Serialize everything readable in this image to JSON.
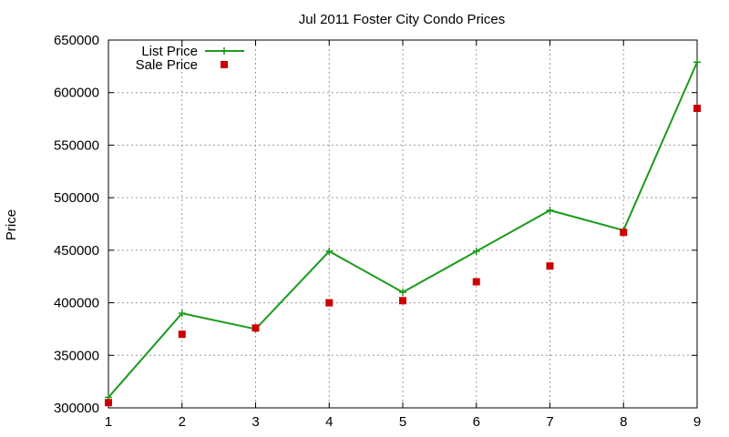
{
  "chart_data": {
    "type": "line",
    "title": "Jul 2011 Foster City Condo Prices",
    "xlabel": "",
    "ylabel": "Price",
    "x": [
      1,
      2,
      3,
      4,
      5,
      6,
      7,
      8,
      9
    ],
    "xlim": [
      1,
      9
    ],
    "ylim": [
      300000,
      650000
    ],
    "xticks": [
      1,
      2,
      3,
      4,
      5,
      6,
      7,
      8,
      9
    ],
    "yticks": [
      300000,
      350000,
      400000,
      450000,
      500000,
      550000,
      600000,
      650000
    ],
    "grid": true,
    "legend_position": "top-left",
    "series": [
      {
        "name": "List Price",
        "style": "linespoints",
        "color": "#1a9b1a",
        "values": [
          310000,
          390000,
          375000,
          449000,
          410000,
          449000,
          488000,
          469000,
          629000
        ]
      },
      {
        "name": "Sale Price",
        "style": "points",
        "color": "#cc0000",
        "values": [
          305000,
          370000,
          376000,
          400000,
          402000,
          420000,
          435000,
          467000,
          585000
        ]
      }
    ]
  }
}
